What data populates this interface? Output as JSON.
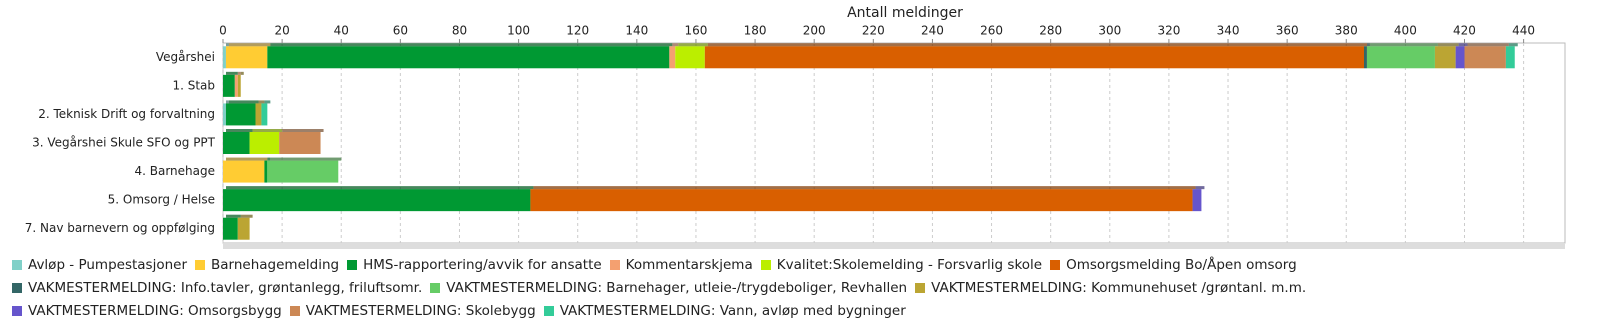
{
  "chart_data": {
    "type": "stacked-bar-horizontal",
    "x_label": "Antall meldinger",
    "categories": [
      "Vegårshei",
      "1. Stab",
      "2. Teknisk Drift og forvaltning",
      "3. Vegårshei Skule  SFO og PPT",
      "4. Barnehage",
      "5. Omsorg / Helse",
      "7. Nav  barnevern og oppfølging"
    ],
    "series": [
      {
        "name": "Avløp - Pumpestasjoner",
        "color": "#80d0c8",
        "values": [
          1,
          0,
          1,
          0,
          0,
          0,
          0
        ]
      },
      {
        "name": "Barnehagemelding",
        "color": "#ffcc33",
        "values": [
          14,
          0,
          0,
          0,
          14,
          0,
          0
        ]
      },
      {
        "name": "HMS-rapportering/avvik for ansatte",
        "color": "#009933",
        "values": [
          136,
          4,
          10,
          9,
          1,
          104,
          5
        ]
      },
      {
        "name": "Kommentarskjema",
        "color": "#f4a070",
        "values": [
          2,
          1,
          0,
          0,
          0,
          0,
          0
        ]
      },
      {
        "name": "Kvalitet:Skolemelding - Forsvarlig skole",
        "color": "#bbee00",
        "values": [
          10,
          0,
          0,
          10,
          0,
          0,
          0
        ]
      },
      {
        "name": "Omsorgsmelding Bo/Åpen omsorg",
        "color": "#d95f00",
        "values": [
          223,
          0,
          0,
          0,
          0,
          224,
          0
        ]
      },
      {
        "name": "VAKMESTERMELDING: Info.tavler, grøntanlegg, friluftsomr.",
        "color": "#336666",
        "values": [
          1,
          0,
          0,
          0,
          0,
          0,
          0
        ]
      },
      {
        "name": "VAKTMESTERMELDING: Barnehager, utleie-/trygdeboliger, Revhallen",
        "color": "#66cc66",
        "values": [
          23,
          0,
          0,
          0,
          24,
          0,
          0
        ]
      },
      {
        "name": "VAKTMESTERMELDING: Kommunehuset /grøntanl. m.m.",
        "color": "#bba533",
        "values": [
          7,
          1,
          2,
          0,
          0,
          0,
          4
        ]
      },
      {
        "name": "VAKTMESTERMELDING: Omsorgsbygg",
        "color": "#6655cc",
        "values": [
          3,
          0,
          0,
          0,
          0,
          3,
          0
        ]
      },
      {
        "name": "VAKTMESTERMELDING: Skolebygg",
        "color": "#cc8855",
        "values": [
          14,
          0,
          0,
          14,
          0,
          0,
          0
        ]
      },
      {
        "name": "VAKTMESTERMELDING: Vann, avløp med bygninger",
        "color": "#33cc99",
        "values": [
          3,
          0,
          2,
          0,
          0,
          0,
          0
        ]
      }
    ],
    "xlim": [
      0,
      454
    ],
    "xticks": [
      0,
      20,
      40,
      60,
      80,
      100,
      120,
      140,
      160,
      180,
      200,
      220,
      240,
      260,
      280,
      300,
      320,
      340,
      360,
      380,
      400,
      420,
      440
    ],
    "grid": true
  }
}
